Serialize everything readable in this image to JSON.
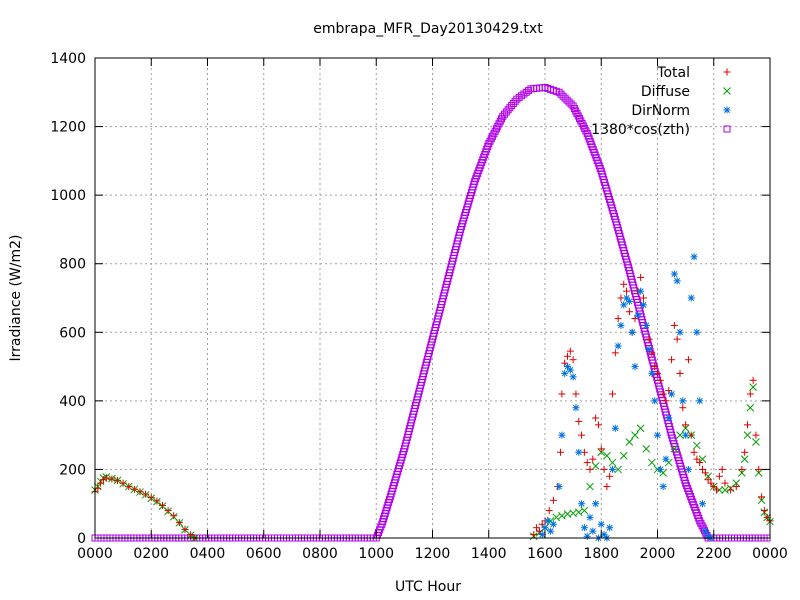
{
  "chart_data": {
    "type": "scatter",
    "title": "embrapa_MFR_Day20130429.txt",
    "xlabel": "UTC Hour",
    "ylabel": "Irradiance (W/m2)",
    "xlim": [
      0,
      24
    ],
    "ylim": [
      0,
      1400
    ],
    "x_ticks": [
      "0000",
      "0200",
      "0400",
      "0600",
      "0800",
      "1000",
      "1200",
      "1400",
      "1600",
      "1800",
      "2000",
      "2200",
      "0000"
    ],
    "y_ticks": [
      0,
      200,
      400,
      600,
      800,
      1000,
      1200,
      1400
    ],
    "grid": true,
    "legend_position": "top-right",
    "series": [
      {
        "name": "Total",
        "marker": "+",
        "color": "#dd0000",
        "points": [
          [
            0.0,
            135
          ],
          [
            0.1,
            145
          ],
          [
            0.2,
            160
          ],
          [
            0.3,
            170
          ],
          [
            0.4,
            175
          ],
          [
            0.6,
            172
          ],
          [
            0.8,
            168
          ],
          [
            1.0,
            160
          ],
          [
            1.2,
            150
          ],
          [
            1.4,
            142
          ],
          [
            1.6,
            135
          ],
          [
            1.8,
            128
          ],
          [
            2.0,
            118
          ],
          [
            2.2,
            108
          ],
          [
            2.4,
            95
          ],
          [
            2.6,
            80
          ],
          [
            2.8,
            65
          ],
          [
            3.0,
            45
          ],
          [
            3.2,
            25
          ],
          [
            3.4,
            10
          ],
          [
            3.55,
            0
          ],
          [
            15.6,
            10
          ],
          [
            15.7,
            30
          ],
          [
            15.8,
            20
          ],
          [
            15.9,
            40
          ],
          [
            16.0,
            50
          ],
          [
            16.15,
            80
          ],
          [
            16.3,
            110
          ],
          [
            16.45,
            150
          ],
          [
            16.55,
            250
          ],
          [
            16.6,
            420
          ],
          [
            16.7,
            510
          ],
          [
            16.8,
            530
          ],
          [
            16.9,
            545
          ],
          [
            17.0,
            520
          ],
          [
            17.1,
            420
          ],
          [
            17.2,
            340
          ],
          [
            17.3,
            300
          ],
          [
            17.4,
            250
          ],
          [
            17.5,
            220
          ],
          [
            17.6,
            200
          ],
          [
            17.7,
            230
          ],
          [
            17.8,
            350
          ],
          [
            17.9,
            330
          ],
          [
            18.0,
            260
          ],
          [
            18.1,
            200
          ],
          [
            18.2,
            150
          ],
          [
            18.3,
            180
          ],
          [
            18.4,
            420
          ],
          [
            18.5,
            540
          ],
          [
            18.6,
            640
          ],
          [
            18.7,
            700
          ],
          [
            18.8,
            740
          ],
          [
            18.9,
            720
          ],
          [
            19.0,
            660
          ],
          [
            19.1,
            600
          ],
          [
            19.2,
            640
          ],
          [
            19.3,
            720
          ],
          [
            19.4,
            760
          ],
          [
            19.5,
            700
          ],
          [
            19.6,
            620
          ],
          [
            19.7,
            580
          ],
          [
            19.8,
            540
          ],
          [
            19.9,
            500
          ],
          [
            20.0,
            480
          ],
          [
            20.1,
            460
          ],
          [
            20.2,
            420
          ],
          [
            20.3,
            400
          ],
          [
            20.4,
            430
          ],
          [
            20.5,
            520
          ],
          [
            20.6,
            620
          ],
          [
            20.7,
            580
          ],
          [
            20.8,
            480
          ],
          [
            20.9,
            380
          ],
          [
            21.0,
            330
          ],
          [
            21.1,
            520
          ],
          [
            21.2,
            300
          ],
          [
            21.3,
            250
          ],
          [
            21.4,
            230
          ],
          [
            21.5,
            220
          ],
          [
            21.6,
            200
          ],
          [
            21.7,
            190
          ],
          [
            21.8,
            170
          ],
          [
            21.9,
            160
          ],
          [
            22.0,
            150
          ],
          [
            22.1,
            140
          ],
          [
            22.2,
            180
          ],
          [
            22.3,
            200
          ],
          [
            22.4,
            160
          ],
          [
            22.6,
            140
          ],
          [
            22.8,
            150
          ],
          [
            23.0,
            200
          ],
          [
            23.1,
            250
          ],
          [
            23.2,
            330
          ],
          [
            23.3,
            420
          ],
          [
            23.4,
            460
          ],
          [
            23.5,
            300
          ],
          [
            23.6,
            200
          ],
          [
            23.7,
            120
          ],
          [
            23.8,
            80
          ],
          [
            23.9,
            60
          ],
          [
            24.0,
            50
          ]
        ]
      },
      {
        "name": "Diffuse",
        "marker": "x",
        "color": "#00a000",
        "points": [
          [
            0.0,
            140
          ],
          [
            0.1,
            150
          ],
          [
            0.2,
            165
          ],
          [
            0.3,
            175
          ],
          [
            0.4,
            178
          ],
          [
            0.6,
            173
          ],
          [
            0.8,
            168
          ],
          [
            1.0,
            158
          ],
          [
            1.2,
            150
          ],
          [
            1.4,
            142
          ],
          [
            1.6,
            134
          ],
          [
            1.8,
            126
          ],
          [
            2.0,
            116
          ],
          [
            2.2,
            106
          ],
          [
            2.4,
            93
          ],
          [
            2.6,
            78
          ],
          [
            2.8,
            62
          ],
          [
            3.0,
            44
          ],
          [
            3.2,
            24
          ],
          [
            3.4,
            8
          ],
          [
            3.55,
            0
          ],
          [
            15.6,
            5
          ],
          [
            15.8,
            15
          ],
          [
            16.0,
            30
          ],
          [
            16.2,
            50
          ],
          [
            16.4,
            60
          ],
          [
            16.6,
            65
          ],
          [
            16.8,
            70
          ],
          [
            17.0,
            72
          ],
          [
            17.2,
            75
          ],
          [
            17.4,
            80
          ],
          [
            17.6,
            150
          ],
          [
            17.8,
            210
          ],
          [
            18.0,
            250
          ],
          [
            18.2,
            240
          ],
          [
            18.4,
            220
          ],
          [
            18.6,
            200
          ],
          [
            18.8,
            240
          ],
          [
            19.0,
            280
          ],
          [
            19.2,
            300
          ],
          [
            19.4,
            320
          ],
          [
            19.6,
            260
          ],
          [
            19.8,
            220
          ],
          [
            20.0,
            200
          ],
          [
            20.2,
            190
          ],
          [
            20.4,
            220
          ],
          [
            20.6,
            260
          ],
          [
            20.8,
            300
          ],
          [
            21.0,
            320
          ],
          [
            21.2,
            300
          ],
          [
            21.4,
            270
          ],
          [
            21.6,
            230
          ],
          [
            21.8,
            180
          ],
          [
            22.0,
            150
          ],
          [
            22.2,
            140
          ],
          [
            22.4,
            140
          ],
          [
            22.6,
            145
          ],
          [
            22.8,
            160
          ],
          [
            23.0,
            190
          ],
          [
            23.1,
            230
          ],
          [
            23.2,
            300
          ],
          [
            23.3,
            380
          ],
          [
            23.4,
            440
          ],
          [
            23.5,
            280
          ],
          [
            23.6,
            190
          ],
          [
            23.7,
            110
          ],
          [
            23.8,
            75
          ],
          [
            23.9,
            60
          ],
          [
            24.0,
            48
          ]
        ]
      },
      {
        "name": "DirNorm",
        "marker": "*",
        "color": "#0070e0",
        "points": [
          [
            15.9,
            10
          ],
          [
            16.0,
            30
          ],
          [
            16.1,
            50
          ],
          [
            16.2,
            20
          ],
          [
            16.3,
            40
          ],
          [
            16.5,
            150
          ],
          [
            16.6,
            300
          ],
          [
            16.7,
            480
          ],
          [
            16.8,
            500
          ],
          [
            16.9,
            490
          ],
          [
            17.0,
            470
          ],
          [
            17.1,
            380
          ],
          [
            17.2,
            250
          ],
          [
            17.3,
            100
          ],
          [
            17.4,
            30
          ],
          [
            17.5,
            5
          ],
          [
            17.6,
            60
          ],
          [
            17.7,
            20
          ],
          [
            17.8,
            100
          ],
          [
            17.9,
            0
          ],
          [
            18.0,
            40
          ],
          [
            18.1,
            10
          ],
          [
            18.2,
            0
          ],
          [
            18.3,
            30
          ],
          [
            18.4,
            200
          ],
          [
            18.5,
            320
          ],
          [
            18.6,
            560
          ],
          [
            18.7,
            620
          ],
          [
            18.8,
            680
          ],
          [
            18.9,
            700
          ],
          [
            19.0,
            690
          ],
          [
            19.1,
            600
          ],
          [
            19.2,
            500
          ],
          [
            19.3,
            650
          ],
          [
            19.4,
            720
          ],
          [
            19.5,
            680
          ],
          [
            19.6,
            620
          ],
          [
            19.7,
            550
          ],
          [
            19.8,
            480
          ],
          [
            19.9,
            400
          ],
          [
            20.0,
            300
          ],
          [
            20.1,
            200
          ],
          [
            20.2,
            150
          ],
          [
            20.3,
            230
          ],
          [
            20.4,
            350
          ],
          [
            20.5,
            420
          ],
          [
            20.6,
            770
          ],
          [
            20.7,
            750
          ],
          [
            20.8,
            600
          ],
          [
            20.9,
            400
          ],
          [
            21.0,
            300
          ],
          [
            21.1,
            200
          ],
          [
            21.2,
            700
          ],
          [
            21.3,
            820
          ],
          [
            21.4,
            600
          ],
          [
            21.5,
            400
          ],
          [
            21.6,
            100
          ],
          [
            21.7,
            20
          ],
          [
            21.8,
            5
          ],
          [
            21.9,
            0
          ]
        ]
      },
      {
        "name": "1380*cos(zth)",
        "marker": "square",
        "color": "#b000e8",
        "points": [
          [
            0,
            0
          ],
          [
            10,
            0
          ],
          [
            10.2,
            40
          ],
          [
            10.5,
            120
          ],
          [
            11,
            260
          ],
          [
            11.5,
            420
          ],
          [
            12,
            580
          ],
          [
            12.5,
            740
          ],
          [
            13,
            900
          ],
          [
            13.5,
            1040
          ],
          [
            14,
            1150
          ],
          [
            14.5,
            1230
          ],
          [
            15,
            1280
          ],
          [
            15.5,
            1310
          ],
          [
            16,
            1314
          ],
          [
            16.5,
            1300
          ],
          [
            17,
            1260
          ],
          [
            17.5,
            1180
          ],
          [
            18,
            1070
          ],
          [
            18.5,
            930
          ],
          [
            19,
            780
          ],
          [
            19.5,
            620
          ],
          [
            20,
            460
          ],
          [
            20.5,
            300
          ],
          [
            21,
            160
          ],
          [
            21.5,
            50
          ],
          [
            21.8,
            0
          ],
          [
            22,
            0
          ],
          [
            24,
            0
          ]
        ]
      }
    ]
  }
}
